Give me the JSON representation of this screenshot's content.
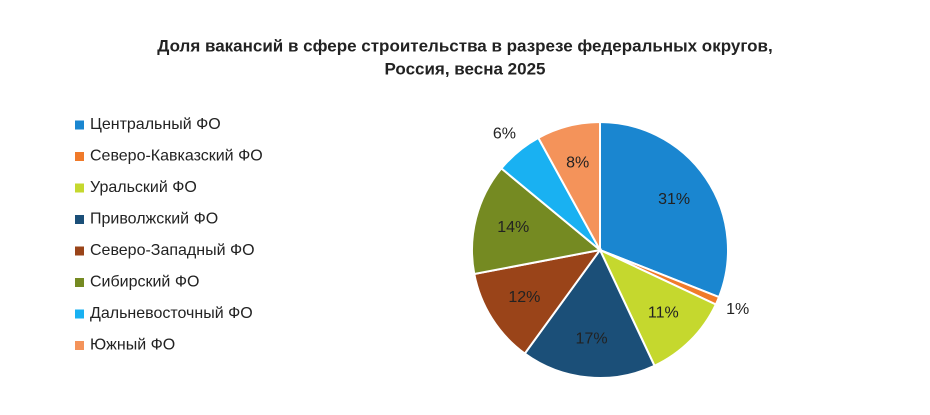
{
  "chart_data": {
    "type": "pie",
    "title": [
      "Доля вакансий в сфере строительства в разрезе федеральных округов,",
      "Россия, весна 2025"
    ],
    "categories": [
      "Центральный ФО",
      "Северо-Кавказский ФО",
      "Уральский ФО",
      "Приволжский ФО",
      "Северо-Западный ФО",
      "Сибирский ФО",
      "Дальневосточный ФО",
      "Южный ФО"
    ],
    "values": [
      31,
      1,
      11,
      17,
      12,
      14,
      6,
      8
    ],
    "value_labels": [
      "31%",
      "1%",
      "11%",
      "17%",
      "12%",
      "14%",
      "6%",
      "8%"
    ],
    "colors": [
      "#1a86d0",
      "#f07a2a",
      "#c5d82e",
      "#1b4f78",
      "#9a4419",
      "#758a22",
      "#19b1f2",
      "#f4935a"
    ],
    "legend": "left"
  }
}
